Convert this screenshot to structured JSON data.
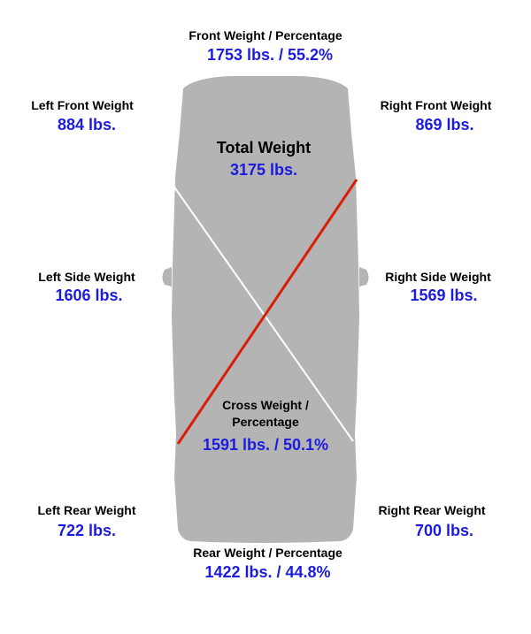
{
  "colors": {
    "car_body": "#b4b4b4",
    "value_text": "#1c1ce0",
    "label_text": "#000000",
    "cross_line_red": "#d81e05",
    "cross_line_white": "#ffffff"
  },
  "front": {
    "label": "Front Weight / Percentage",
    "value": "1753 lbs. / 55.2%"
  },
  "left_front": {
    "label": "Left Front Weight",
    "value": "884 lbs."
  },
  "right_front": {
    "label": "Right Front Weight",
    "value": "869 lbs."
  },
  "total": {
    "label": "Total Weight",
    "value": "3175 lbs."
  },
  "left_side": {
    "label": "Left Side Weight",
    "value": "1606 lbs."
  },
  "right_side": {
    "label": "Right Side Weight",
    "value": "1569 lbs."
  },
  "cross": {
    "label_line1": "Cross Weight /",
    "label_line2": "Percentage",
    "value": "1591 lbs. / 50.1%"
  },
  "left_rear": {
    "label": "Left Rear Weight",
    "value": "722 lbs."
  },
  "right_rear": {
    "label": "Right Rear Weight",
    "value": "700 lbs."
  },
  "rear": {
    "label": "Rear Weight / Percentage",
    "value": "1422 lbs. / 44.8%"
  }
}
